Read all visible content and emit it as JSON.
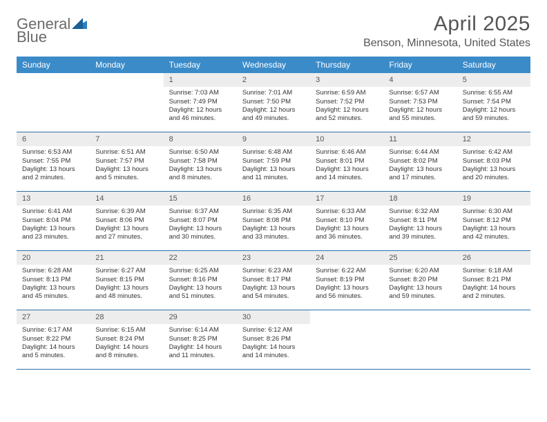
{
  "logo": {
    "word1": "General",
    "word2": "Blue"
  },
  "title": "April 2025",
  "location": "Benson, Minnesota, United States",
  "colors": {
    "header_bg": "#3b8bc9",
    "header_text": "#ffffff",
    "daynum_bg": "#ededed",
    "border": "#2a6fa6",
    "logo_gray": "#6a6a6a",
    "logo_blue": "#2d7fc1"
  },
  "weekdays": [
    "Sunday",
    "Monday",
    "Tuesday",
    "Wednesday",
    "Thursday",
    "Friday",
    "Saturday"
  ],
  "leading_blanks": 2,
  "days": [
    {
      "n": 1,
      "sunrise": "7:03 AM",
      "sunset": "7:49 PM",
      "daylight": "12 hours and 46 minutes."
    },
    {
      "n": 2,
      "sunrise": "7:01 AM",
      "sunset": "7:50 PM",
      "daylight": "12 hours and 49 minutes."
    },
    {
      "n": 3,
      "sunrise": "6:59 AM",
      "sunset": "7:52 PM",
      "daylight": "12 hours and 52 minutes."
    },
    {
      "n": 4,
      "sunrise": "6:57 AM",
      "sunset": "7:53 PM",
      "daylight": "12 hours and 55 minutes."
    },
    {
      "n": 5,
      "sunrise": "6:55 AM",
      "sunset": "7:54 PM",
      "daylight": "12 hours and 59 minutes."
    },
    {
      "n": 6,
      "sunrise": "6:53 AM",
      "sunset": "7:55 PM",
      "daylight": "13 hours and 2 minutes."
    },
    {
      "n": 7,
      "sunrise": "6:51 AM",
      "sunset": "7:57 PM",
      "daylight": "13 hours and 5 minutes."
    },
    {
      "n": 8,
      "sunrise": "6:50 AM",
      "sunset": "7:58 PM",
      "daylight": "13 hours and 8 minutes."
    },
    {
      "n": 9,
      "sunrise": "6:48 AM",
      "sunset": "7:59 PM",
      "daylight": "13 hours and 11 minutes."
    },
    {
      "n": 10,
      "sunrise": "6:46 AM",
      "sunset": "8:01 PM",
      "daylight": "13 hours and 14 minutes."
    },
    {
      "n": 11,
      "sunrise": "6:44 AM",
      "sunset": "8:02 PM",
      "daylight": "13 hours and 17 minutes."
    },
    {
      "n": 12,
      "sunrise": "6:42 AM",
      "sunset": "8:03 PM",
      "daylight": "13 hours and 20 minutes."
    },
    {
      "n": 13,
      "sunrise": "6:41 AM",
      "sunset": "8:04 PM",
      "daylight": "13 hours and 23 minutes."
    },
    {
      "n": 14,
      "sunrise": "6:39 AM",
      "sunset": "8:06 PM",
      "daylight": "13 hours and 27 minutes."
    },
    {
      "n": 15,
      "sunrise": "6:37 AM",
      "sunset": "8:07 PM",
      "daylight": "13 hours and 30 minutes."
    },
    {
      "n": 16,
      "sunrise": "6:35 AM",
      "sunset": "8:08 PM",
      "daylight": "13 hours and 33 minutes."
    },
    {
      "n": 17,
      "sunrise": "6:33 AM",
      "sunset": "8:10 PM",
      "daylight": "13 hours and 36 minutes."
    },
    {
      "n": 18,
      "sunrise": "6:32 AM",
      "sunset": "8:11 PM",
      "daylight": "13 hours and 39 minutes."
    },
    {
      "n": 19,
      "sunrise": "6:30 AM",
      "sunset": "8:12 PM",
      "daylight": "13 hours and 42 minutes."
    },
    {
      "n": 20,
      "sunrise": "6:28 AM",
      "sunset": "8:13 PM",
      "daylight": "13 hours and 45 minutes."
    },
    {
      "n": 21,
      "sunrise": "6:27 AM",
      "sunset": "8:15 PM",
      "daylight": "13 hours and 48 minutes."
    },
    {
      "n": 22,
      "sunrise": "6:25 AM",
      "sunset": "8:16 PM",
      "daylight": "13 hours and 51 minutes."
    },
    {
      "n": 23,
      "sunrise": "6:23 AM",
      "sunset": "8:17 PM",
      "daylight": "13 hours and 54 minutes."
    },
    {
      "n": 24,
      "sunrise": "6:22 AM",
      "sunset": "8:19 PM",
      "daylight": "13 hours and 56 minutes."
    },
    {
      "n": 25,
      "sunrise": "6:20 AM",
      "sunset": "8:20 PM",
      "daylight": "13 hours and 59 minutes."
    },
    {
      "n": 26,
      "sunrise": "6:18 AM",
      "sunset": "8:21 PM",
      "daylight": "14 hours and 2 minutes."
    },
    {
      "n": 27,
      "sunrise": "6:17 AM",
      "sunset": "8:22 PM",
      "daylight": "14 hours and 5 minutes."
    },
    {
      "n": 28,
      "sunrise": "6:15 AM",
      "sunset": "8:24 PM",
      "daylight": "14 hours and 8 minutes."
    },
    {
      "n": 29,
      "sunrise": "6:14 AM",
      "sunset": "8:25 PM",
      "daylight": "14 hours and 11 minutes."
    },
    {
      "n": 30,
      "sunrise": "6:12 AM",
      "sunset": "8:26 PM",
      "daylight": "14 hours and 14 minutes."
    }
  ],
  "labels": {
    "sunrise": "Sunrise:",
    "sunset": "Sunset:",
    "daylight": "Daylight:"
  }
}
